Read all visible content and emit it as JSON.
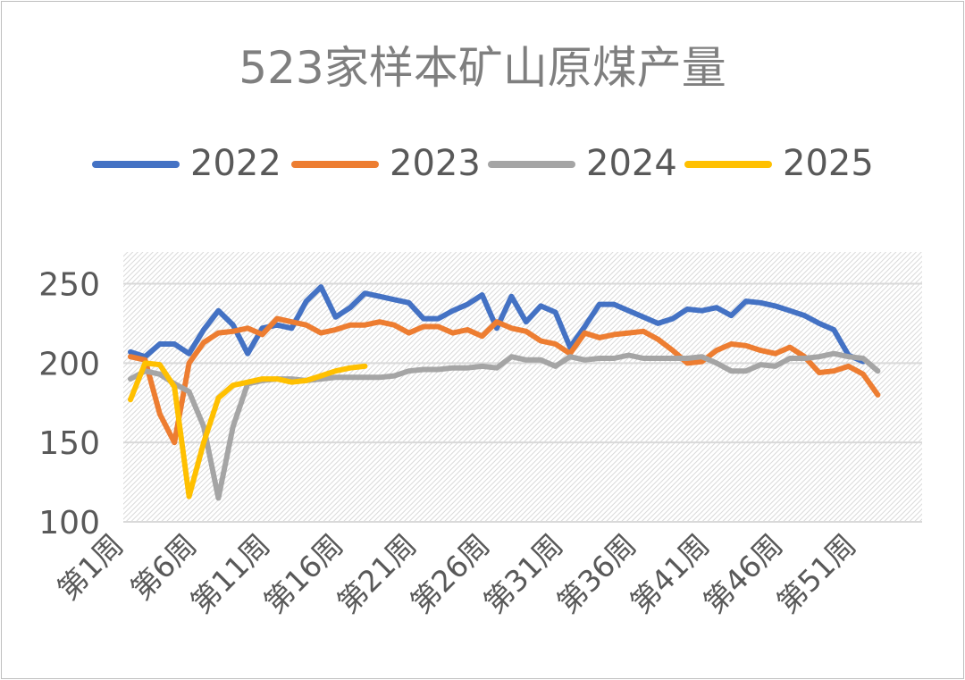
{
  "chart_data": {
    "type": "line",
    "title": "523家样本矿山原煤产量",
    "xlabel": "",
    "ylabel": "",
    "ylim": [
      100,
      270
    ],
    "yticks": [
      100,
      150,
      200,
      250
    ],
    "x_tick_labels": [
      "第1周",
      "第6周",
      "第11周",
      "第16周",
      "第21周",
      "第26周",
      "第31周",
      "第36周",
      "第41周",
      "第46周",
      "第51周"
    ],
    "x_tick_weeks": [
      1,
      6,
      11,
      16,
      21,
      26,
      31,
      36,
      41,
      46,
      51
    ],
    "legend_position": "top",
    "grid": true,
    "series": [
      {
        "name": "2022",
        "color": "#4472c4",
        "values": [
          207,
          204,
          212,
          212,
          206,
          221,
          233,
          224,
          206,
          222,
          224,
          222,
          239,
          248,
          229,
          235,
          244,
          242,
          240,
          238,
          228,
          228,
          233,
          237,
          243,
          222,
          242,
          226,
          236,
          232,
          210,
          223,
          237,
          237,
          233,
          229,
          225,
          228,
          234,
          233,
          235,
          230,
          239,
          238,
          236,
          233,
          230,
          225,
          221,
          205,
          201
        ]
      },
      {
        "name": "2023",
        "color": "#ed7d31",
        "values": [
          204,
          202,
          168,
          150,
          200,
          213,
          219,
          220,
          222,
          218,
          228,
          226,
          224,
          219,
          221,
          224,
          224,
          226,
          224,
          219,
          223,
          223,
          219,
          221,
          217,
          226,
          222,
          220,
          214,
          212,
          206,
          219,
          216,
          218,
          219,
          220,
          215,
          208,
          200,
          201,
          208,
          212,
          211,
          208,
          206,
          210,
          204,
          194,
          195,
          198,
          193,
          180
        ]
      },
      {
        "name": "2024",
        "color": "#a5a5a5",
        "values": [
          190,
          195,
          193,
          187,
          182,
          160,
          115,
          160,
          187,
          189,
          190,
          190,
          189,
          190,
          191,
          191,
          191,
          191,
          192,
          195,
          196,
          196,
          197,
          197,
          198,
          197,
          204,
          202,
          202,
          198,
          204,
          202,
          203,
          203,
          205,
          203,
          203,
          203,
          203,
          204,
          200,
          195,
          195,
          199,
          198,
          203,
          203,
          204,
          206,
          204,
          203,
          195
        ]
      },
      {
        "name": "2025",
        "color": "#ffc000",
        "values": [
          177,
          200,
          199,
          185,
          116,
          150,
          178,
          186,
          188,
          190,
          190,
          188,
          189,
          192,
          195,
          197,
          198
        ]
      }
    ]
  }
}
